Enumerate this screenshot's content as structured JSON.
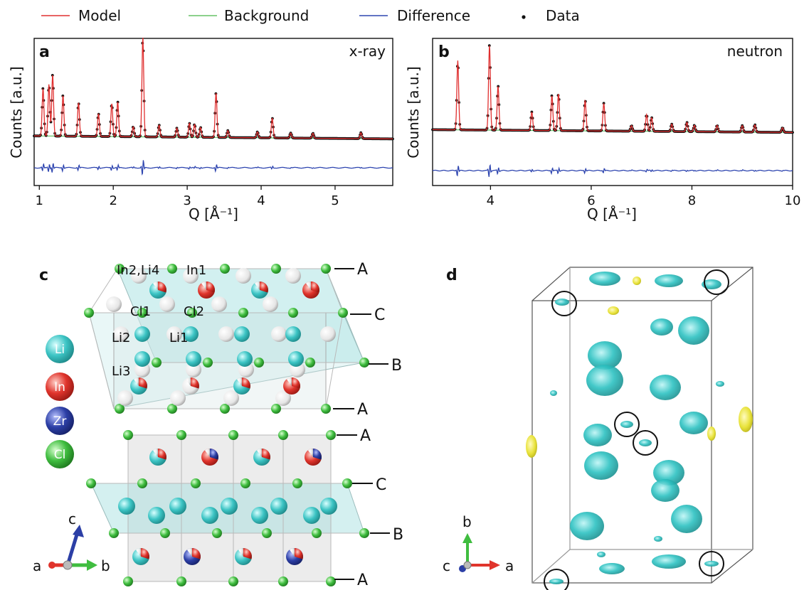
{
  "legend": {
    "items": [
      {
        "label": "Model",
        "color": "#e03030",
        "marker": "line"
      },
      {
        "label": "Background",
        "color": "#66c266",
        "marker": "line"
      },
      {
        "label": "Difference",
        "color": "#2f46b0",
        "marker": "line"
      },
      {
        "label": "Data",
        "color": "#111111",
        "marker": "dot"
      }
    ]
  },
  "chart_data": [
    {
      "type": "line",
      "panel": "a",
      "corner_label": "x-ray",
      "xlabel": "Q [Å⁻¹]",
      "ylabel": "Counts [a.u.]",
      "xlim": [
        0.93,
        5.78
      ],
      "xticks": [
        1,
        2,
        3,
        4,
        5
      ],
      "background_level": 0.12,
      "difference_offset": -0.12,
      "peaks": [
        {
          "x": 1.05,
          "h": 0.48
        },
        {
          "x": 1.13,
          "h": 0.52
        },
        {
          "x": 1.18,
          "h": 0.62
        },
        {
          "x": 1.32,
          "h": 0.41
        },
        {
          "x": 1.53,
          "h": 0.34
        },
        {
          "x": 1.8,
          "h": 0.23
        },
        {
          "x": 1.98,
          "h": 0.33
        },
        {
          "x": 2.06,
          "h": 0.35
        },
        {
          "x": 2.27,
          "h": 0.1
        },
        {
          "x": 2.4,
          "h": 1.0
        },
        {
          "x": 2.62,
          "h": 0.12
        },
        {
          "x": 2.86,
          "h": 0.09
        },
        {
          "x": 3.03,
          "h": 0.14
        },
        {
          "x": 3.1,
          "h": 0.13
        },
        {
          "x": 3.18,
          "h": 0.1
        },
        {
          "x": 3.39,
          "h": 0.45
        },
        {
          "x": 3.55,
          "h": 0.07
        },
        {
          "x": 3.95,
          "h": 0.06
        },
        {
          "x": 4.15,
          "h": 0.2
        },
        {
          "x": 4.4,
          "h": 0.05
        },
        {
          "x": 4.7,
          "h": 0.05
        },
        {
          "x": 5.35,
          "h": 0.06
        }
      ]
    },
    {
      "type": "line",
      "panel": "b",
      "corner_label": "neutron",
      "xlabel": "Q [Å⁻¹]",
      "ylabel": "Counts [a.u.]",
      "xlim": [
        2.85,
        10.0
      ],
      "xticks": [
        4,
        6,
        8,
        10
      ],
      "background_level": 0.12,
      "difference_offset": -0.12,
      "peaks": [
        {
          "x": 3.35,
          "h": 0.75
        },
        {
          "x": 3.98,
          "h": 0.92
        },
        {
          "x": 4.15,
          "h": 0.48
        },
        {
          "x": 4.82,
          "h": 0.2
        },
        {
          "x": 5.22,
          "h": 0.38
        },
        {
          "x": 5.35,
          "h": 0.4
        },
        {
          "x": 5.88,
          "h": 0.33
        },
        {
          "x": 6.25,
          "h": 0.3
        },
        {
          "x": 6.8,
          "h": 0.06
        },
        {
          "x": 7.1,
          "h": 0.18
        },
        {
          "x": 7.2,
          "h": 0.15
        },
        {
          "x": 7.6,
          "h": 0.08
        },
        {
          "x": 7.9,
          "h": 0.1
        },
        {
          "x": 8.05,
          "h": 0.07
        },
        {
          "x": 8.5,
          "h": 0.07
        },
        {
          "x": 9.0,
          "h": 0.07
        },
        {
          "x": 9.25,
          "h": 0.08
        },
        {
          "x": 9.8,
          "h": 0.05
        }
      ]
    }
  ],
  "panel_c": {
    "letter": "c",
    "upper_layers": [
      "A",
      "C",
      "B",
      "A"
    ],
    "lower_layers": [
      "A",
      "C",
      "B",
      "A"
    ],
    "site_labels": [
      "In2,Li4",
      "In1",
      "Cl1",
      "Cl2",
      "Li2",
      "Li1",
      "Li3"
    ],
    "element_legend": [
      {
        "symbol": "Li",
        "color": "#3cc4c4"
      },
      {
        "symbol": "In",
        "color": "#e0342c"
      },
      {
        "symbol": "Zr",
        "color": "#2c3fa6"
      },
      {
        "symbol": "Cl",
        "color": "#3fbd3f"
      }
    ],
    "axes": {
      "a": "a",
      "b": "b",
      "c": "c"
    }
  },
  "panel_d": {
    "letter": "d",
    "axes": {
      "a": "a",
      "b": "b",
      "c": "c"
    },
    "isosurface_color": "#2ec2c2",
    "secondary_color": "#e8e23a"
  }
}
